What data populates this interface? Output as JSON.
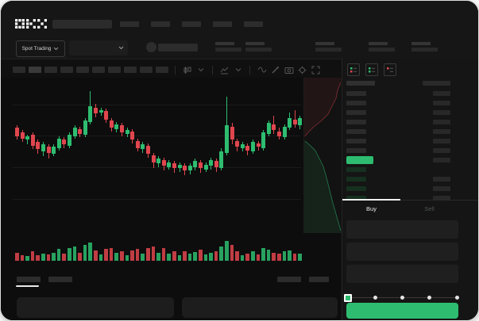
{
  "brand": "OKX",
  "accent": {
    "green": "#2ebd70",
    "red": "#e0464e",
    "bid_row": "#163020",
    "ask_row": "#2b2b2b"
  },
  "topnav": {
    "nav_item_count": 5
  },
  "ticker": {
    "market_selector_label": "Spot Trading",
    "stat_group_count": 5,
    "stat_group_offsets": [
      270,
      308,
      396,
      463,
      517
    ]
  },
  "toolbar": {
    "interval_button_count": 10,
    "active_interval_index": 1
  },
  "order_book": {
    "view_modes": [
      "book-combined",
      "book-bids",
      "book-asks"
    ],
    "ask_row_count": 7,
    "bid_row_count": 4,
    "bid_rows_with_amount": [
      false,
      true,
      true,
      true
    ]
  },
  "trade_panel": {
    "buy_tab_label": "Buy",
    "sell_tab_label": "Sell",
    "input_count": 3,
    "slider_stop_count": 5,
    "slider_value_index": 0
  },
  "chart_data": {
    "type": "candlestick",
    "title": "",
    "xlabel": "",
    "ylabel": "",
    "grid": true,
    "price_unit_range": [
      0,
      100
    ],
    "candles_format": [
      "open",
      "close",
      "high",
      "low",
      "volume"
    ],
    "candles": [
      [
        62,
        55,
        64,
        52,
        30
      ],
      [
        58,
        53,
        60,
        50,
        22
      ],
      [
        52,
        55,
        56,
        48,
        18
      ],
      [
        56,
        47,
        58,
        44,
        35
      ],
      [
        50,
        44,
        52,
        40,
        20
      ],
      [
        42,
        48,
        50,
        38,
        28
      ],
      [
        46,
        41,
        48,
        36,
        25
      ],
      [
        40,
        46,
        48,
        38,
        30
      ],
      [
        45,
        53,
        55,
        43,
        45
      ],
      [
        52,
        48,
        54,
        45,
        26
      ],
      [
        47,
        56,
        58,
        45,
        50
      ],
      [
        55,
        62,
        64,
        53,
        55
      ],
      [
        61,
        57,
        63,
        54,
        30
      ],
      [
        56,
        68,
        70,
        54,
        60
      ],
      [
        67,
        80,
        93,
        65,
        70
      ],
      [
        79,
        74,
        82,
        71,
        40
      ],
      [
        75,
        77,
        79,
        72,
        25
      ],
      [
        76,
        69,
        78,
        66,
        45
      ],
      [
        68,
        62,
        70,
        59,
        50
      ],
      [
        61,
        65,
        67,
        58,
        30
      ],
      [
        64,
        58,
        66,
        55,
        35
      ],
      [
        57,
        60,
        62,
        54,
        22
      ],
      [
        59,
        52,
        61,
        49,
        40
      ],
      [
        51,
        45,
        53,
        42,
        45
      ],
      [
        44,
        48,
        50,
        41,
        28
      ],
      [
        47,
        40,
        49,
        37,
        50
      ],
      [
        39,
        33,
        41,
        28,
        55
      ],
      [
        32,
        36,
        38,
        29,
        30
      ],
      [
        35,
        30,
        37,
        26,
        48
      ],
      [
        29,
        33,
        35,
        27,
        26
      ],
      [
        32,
        28,
        34,
        24,
        38
      ],
      [
        28,
        31,
        33,
        25,
        22
      ],
      [
        30,
        26,
        32,
        22,
        35
      ],
      [
        26,
        30,
        32,
        23,
        28
      ],
      [
        29,
        34,
        36,
        26,
        32
      ],
      [
        33,
        28,
        35,
        24,
        42
      ],
      [
        27,
        31,
        33,
        25,
        24
      ],
      [
        30,
        35,
        37,
        27,
        30
      ],
      [
        34,
        29,
        36,
        25,
        35
      ],
      [
        28,
        42,
        45,
        26,
        55
      ],
      [
        41,
        64,
        88,
        39,
        75
      ],
      [
        63,
        52,
        66,
        48,
        60
      ],
      [
        51,
        46,
        53,
        42,
        35
      ],
      [
        45,
        48,
        50,
        42,
        20
      ],
      [
        47,
        43,
        49,
        39,
        28
      ],
      [
        42,
        50,
        52,
        40,
        38
      ],
      [
        49,
        46,
        51,
        43,
        25
      ],
      [
        45,
        58,
        60,
        43,
        48
      ],
      [
        57,
        66,
        68,
        55,
        42
      ],
      [
        65,
        60,
        72,
        57,
        30
      ],
      [
        59,
        55,
        62,
        52,
        26
      ],
      [
        54,
        63,
        65,
        52,
        36
      ],
      [
        62,
        70,
        75,
        60,
        40
      ],
      [
        69,
        65,
        77,
        62,
        28
      ],
      [
        64,
        70,
        72,
        61,
        28
      ]
    ],
    "depth": {
      "asks_line": [
        [
          46,
          6
        ],
        [
          42,
          16
        ],
        [
          40,
          26
        ],
        [
          34,
          38
        ],
        [
          30,
          46
        ],
        [
          22,
          54
        ],
        [
          12,
          62
        ],
        [
          4,
          70
        ],
        [
          1,
          74
        ]
      ],
      "bids_line": [
        [
          1,
          80
        ],
        [
          8,
          86
        ],
        [
          14,
          92
        ],
        [
          18,
          100
        ],
        [
          24,
          112
        ],
        [
          28,
          126
        ],
        [
          32,
          142
        ],
        [
          36,
          158
        ],
        [
          40,
          172
        ],
        [
          44,
          186
        ],
        [
          46,
          193
        ]
      ]
    }
  }
}
